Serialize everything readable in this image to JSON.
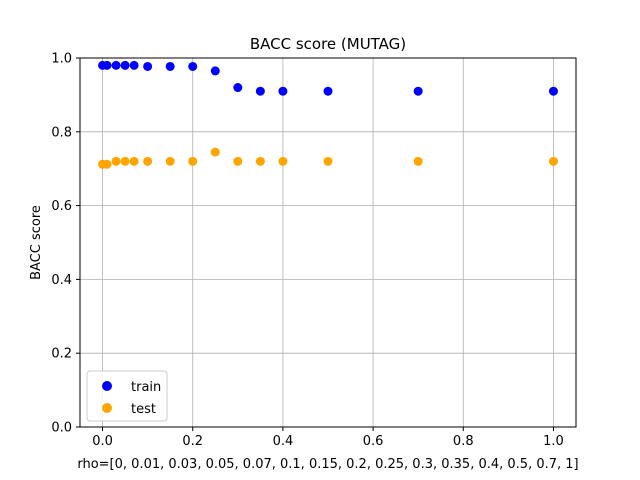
{
  "chart_data": {
    "type": "scatter",
    "title": "BACC score (MUTAG)",
    "xlabel": "rho=[0, 0.01, 0.03, 0.05, 0.07, 0.1, 0.15, 0.2, 0.25, 0.3, 0.35, 0.4, 0.5, 0.7, 1]",
    "ylabel": "BACC score",
    "xlim": [
      -0.05,
      1.05
    ],
    "ylim": [
      0.0,
      1.0
    ],
    "x_ticks": [
      "0.0",
      "0.2",
      "0.4",
      "0.6",
      "0.8",
      "1.0"
    ],
    "y_ticks": [
      "0.0",
      "0.2",
      "0.4",
      "0.6",
      "0.8",
      "1.0"
    ],
    "grid": true,
    "legend_position": "lower-left",
    "x": [
      0,
      0.01,
      0.03,
      0.05,
      0.07,
      0.1,
      0.15,
      0.2,
      0.25,
      0.3,
      0.35,
      0.4,
      0.5,
      0.7,
      1
    ],
    "series": [
      {
        "name": "train",
        "color": "#0000ff",
        "values": [
          0.98,
          0.98,
          0.98,
          0.98,
          0.98,
          0.977,
          0.977,
          0.977,
          0.965,
          0.92,
          0.91,
          0.91,
          0.91,
          0.91,
          0.91
        ]
      },
      {
        "name": "test",
        "color": "#ffa500",
        "values": [
          0.712,
          0.712,
          0.72,
          0.72,
          0.72,
          0.72,
          0.72,
          0.72,
          0.745,
          0.72,
          0.72,
          0.72,
          0.72,
          0.72,
          0.72
        ]
      }
    ]
  }
}
